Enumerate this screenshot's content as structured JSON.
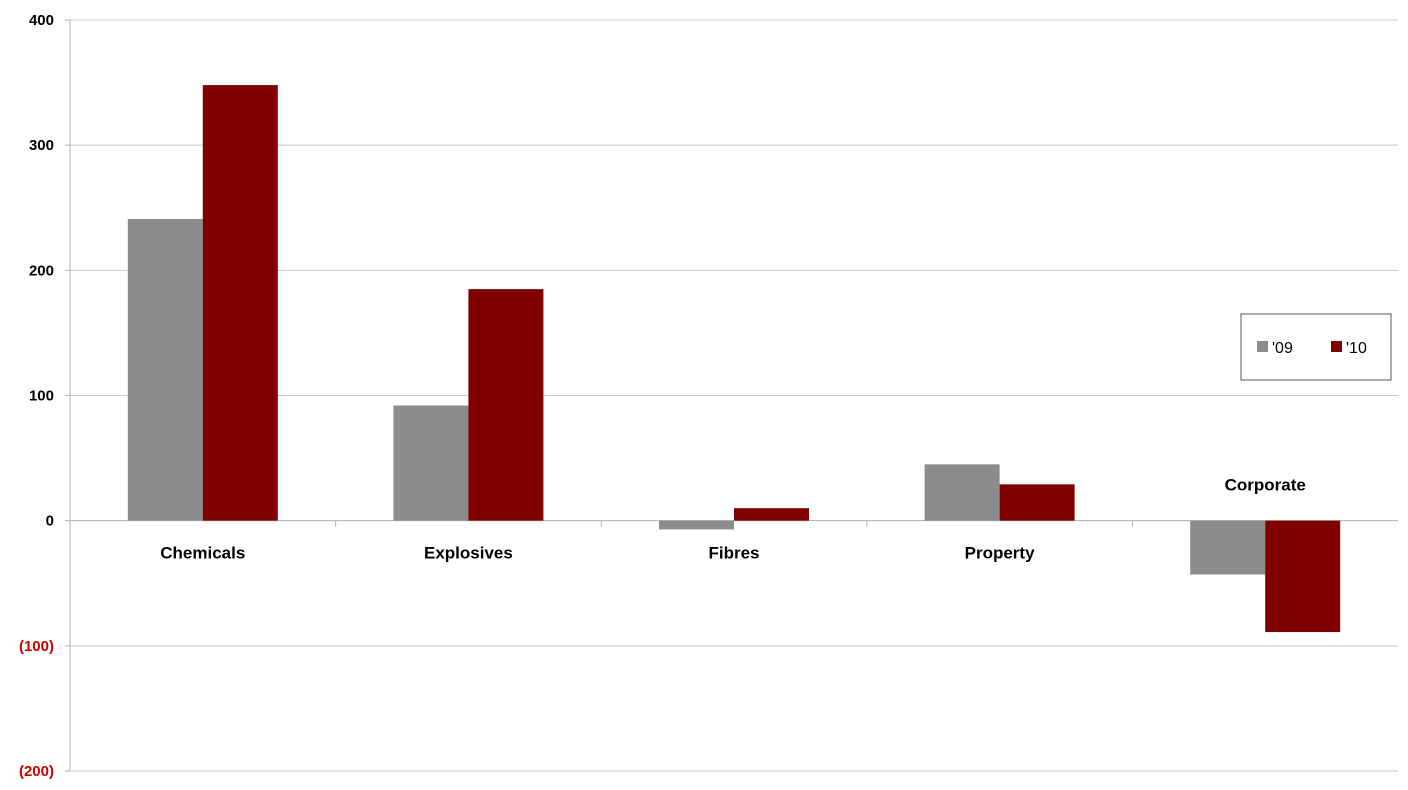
{
  "chart_data": {
    "type": "bar",
    "categories": [
      "Chemicals",
      "Explosives",
      "Fibres",
      "Property",
      "Corporate"
    ],
    "series": [
      {
        "name": "'09",
        "color": "#8c8c8c",
        "values": [
          241,
          92,
          -7,
          45,
          -43
        ]
      },
      {
        "name": "'10",
        "color": "#800000",
        "values": [
          348,
          185,
          10,
          29,
          -89
        ]
      }
    ],
    "y_ticks": [
      {
        "value": 400,
        "label": "400"
      },
      {
        "value": 300,
        "label": "300"
      },
      {
        "value": 200,
        "label": "200"
      },
      {
        "value": 100,
        "label": "100"
      },
      {
        "value": 0,
        "label": "0"
      },
      {
        "value": -100,
        "label": "(100)"
      },
      {
        "value": -200,
        "label": "(200)"
      }
    ],
    "ylim": [
      -200,
      400
    ],
    "grid": true,
    "legend_position": "right",
    "negative_label_color": "#cc0000",
    "title": "",
    "xlabel": "",
    "ylabel": ""
  }
}
